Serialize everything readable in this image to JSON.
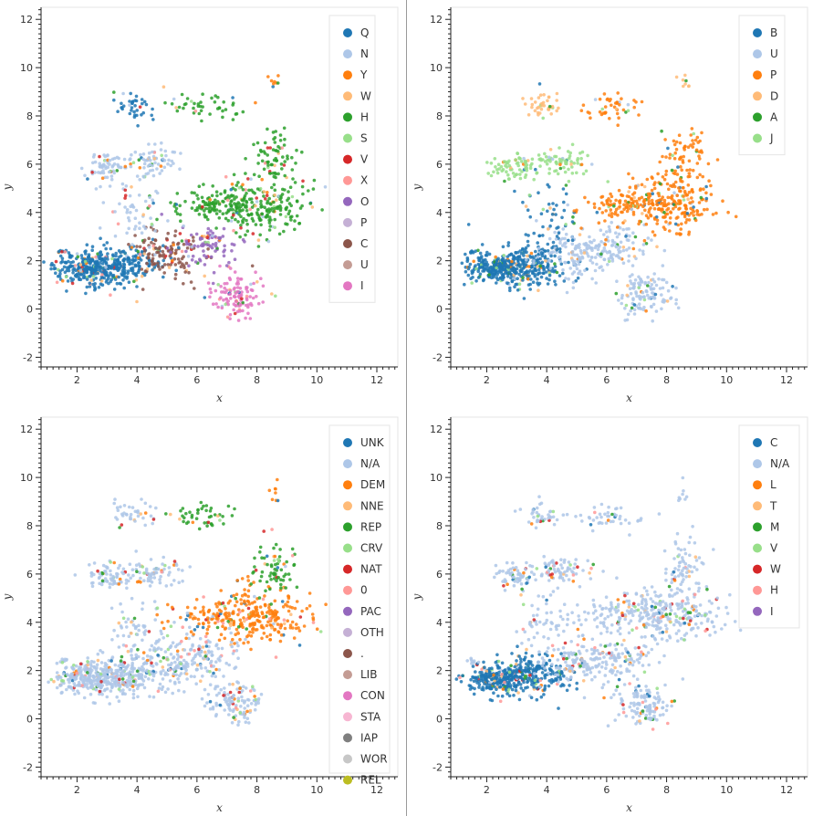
{
  "chart_data": [
    {
      "type": "scatter",
      "xlabel": "x",
      "ylabel": "y",
      "xlim": [
        0.8,
        12.7
      ],
      "ylim": [
        -2.4,
        12.5
      ],
      "xticks": [
        2,
        4,
        6,
        8,
        10,
        12
      ],
      "yticks": [
        -2,
        0,
        2,
        4,
        6,
        8,
        10,
        12
      ],
      "legend_position": "top-right",
      "series": [
        {
          "name": "Q",
          "color": "#1f77b4"
        },
        {
          "name": "N",
          "color": "#aec7e8"
        },
        {
          "name": "Y",
          "color": "#ff7f0e"
        },
        {
          "name": "W",
          "color": "#ffbb78"
        },
        {
          "name": "H",
          "color": "#2ca02c"
        },
        {
          "name": "S",
          "color": "#98df8a"
        },
        {
          "name": "V",
          "color": "#d62728"
        },
        {
          "name": "X",
          "color": "#ff9896"
        },
        {
          "name": "O",
          "color": "#9467bd"
        },
        {
          "name": "P",
          "color": "#c5b0d5"
        },
        {
          "name": "C",
          "color": "#8c564b"
        },
        {
          "name": "U",
          "color": "#c49c94"
        },
        {
          "name": "I",
          "color": "#e377c2"
        }
      ]
    },
    {
      "type": "scatter",
      "xlabel": "x",
      "ylabel": "y",
      "xlim": [
        0.8,
        12.7
      ],
      "ylim": [
        -2.4,
        12.5
      ],
      "xticks": [
        2,
        4,
        6,
        8,
        10,
        12
      ],
      "yticks": [
        -2,
        0,
        2,
        4,
        6,
        8,
        10,
        12
      ],
      "legend_position": "top-right",
      "series": [
        {
          "name": "B",
          "color": "#1f77b4"
        },
        {
          "name": "U",
          "color": "#aec7e8"
        },
        {
          "name": "P",
          "color": "#ff7f0e"
        },
        {
          "name": "D",
          "color": "#ffbb78"
        },
        {
          "name": "A",
          "color": "#2ca02c"
        },
        {
          "name": "J",
          "color": "#98df8a"
        }
      ]
    },
    {
      "type": "scatter",
      "xlabel": "x",
      "ylabel": "y",
      "xlim": [
        0.8,
        12.7
      ],
      "ylim": [
        -2.4,
        12.5
      ],
      "xticks": [
        2,
        4,
        6,
        8,
        10,
        12
      ],
      "yticks": [
        -2,
        0,
        2,
        4,
        6,
        8,
        10,
        12
      ],
      "legend_position": "top-right",
      "series": [
        {
          "name": "UNK",
          "color": "#1f77b4"
        },
        {
          "name": "N/A",
          "color": "#aec7e8"
        },
        {
          "name": "DEM",
          "color": "#ff7f0e"
        },
        {
          "name": "NNE",
          "color": "#ffbb78"
        },
        {
          "name": "REP",
          "color": "#2ca02c"
        },
        {
          "name": "CRV",
          "color": "#98df8a"
        },
        {
          "name": "NAT",
          "color": "#d62728"
        },
        {
          "name": "0",
          "color": "#ff9896"
        },
        {
          "name": "PAC",
          "color": "#9467bd"
        },
        {
          "name": "OTH",
          "color": "#c5b0d5"
        },
        {
          "name": ".",
          "color": "#8c564b"
        },
        {
          "name": "LIB",
          "color": "#c49c94"
        },
        {
          "name": "CON",
          "color": "#e377c2"
        },
        {
          "name": "STA",
          "color": "#f7b6d2"
        },
        {
          "name": "IAP",
          "color": "#7f7f7f"
        },
        {
          "name": "WOR",
          "color": "#c7c7c7"
        },
        {
          "name": "REL",
          "color": "#bcbd22"
        }
      ]
    },
    {
      "type": "scatter",
      "xlabel": "x",
      "ylabel": "y",
      "xlim": [
        0.8,
        12.7
      ],
      "ylim": [
        -2.4,
        12.5
      ],
      "xticks": [
        2,
        4,
        6,
        8,
        10,
        12
      ],
      "yticks": [
        -2,
        0,
        2,
        4,
        6,
        8,
        10,
        12
      ],
      "legend_position": "top-right",
      "series": [
        {
          "name": "C",
          "color": "#1f77b4"
        },
        {
          "name": "N/A",
          "color": "#aec7e8"
        },
        {
          "name": "L",
          "color": "#ff7f0e"
        },
        {
          "name": "T",
          "color": "#ffbb78"
        },
        {
          "name": "M",
          "color": "#2ca02c"
        },
        {
          "name": "V",
          "color": "#98df8a"
        },
        {
          "name": "W",
          "color": "#d62728"
        },
        {
          "name": "H",
          "color": "#ff9896"
        },
        {
          "name": "I",
          "color": "#9467bd"
        }
      ]
    }
  ]
}
